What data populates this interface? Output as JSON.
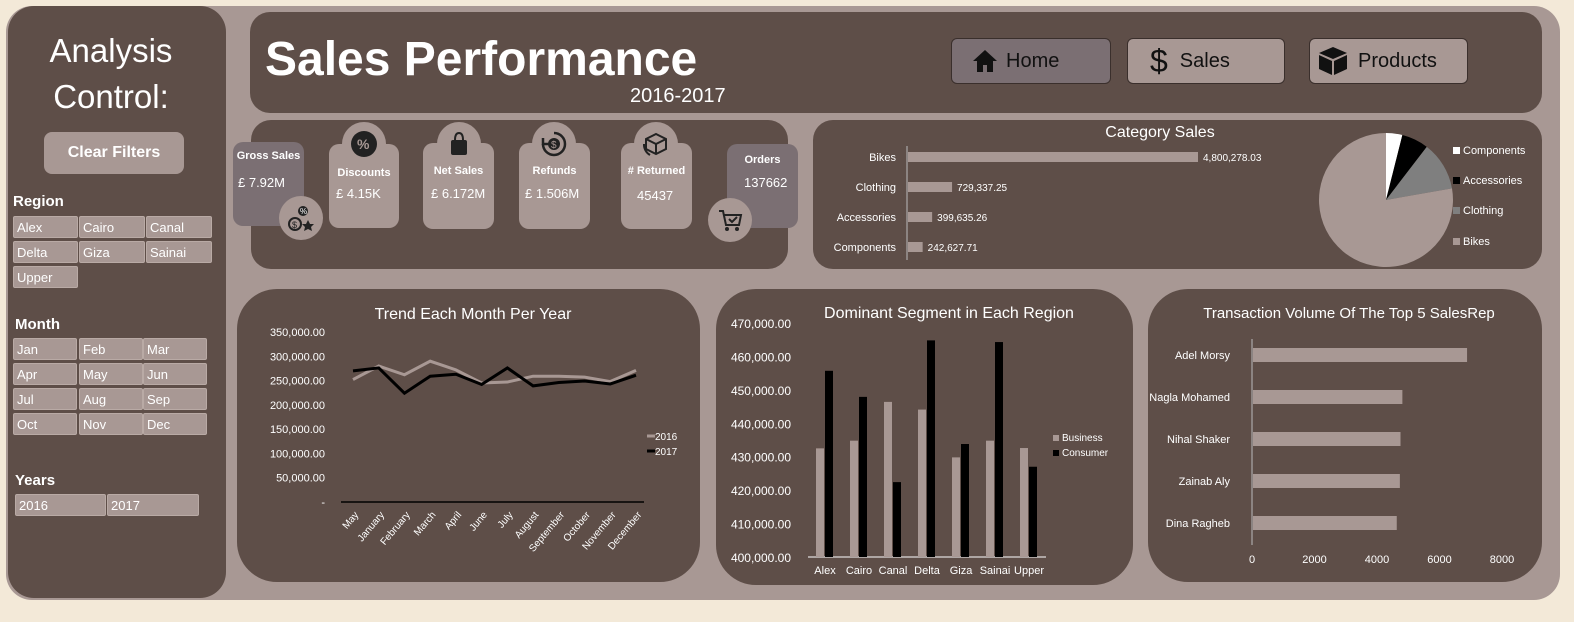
{
  "sidebar": {
    "title_line1": "Analysis",
    "title_line2": "Control:",
    "clear_filters": "Clear Filters",
    "region": {
      "label": "Region",
      "items": [
        "Alex",
        "Cairo",
        "Canal",
        "Delta",
        "Giza",
        "Sainai",
        "Upper"
      ]
    },
    "month": {
      "label": "Month",
      "items": [
        "Jan",
        "Feb",
        "Mar",
        "Apr",
        "May",
        "Jun",
        "Jul",
        "Aug",
        "Sep",
        "Oct",
        "Nov",
        "Dec"
      ]
    },
    "years": {
      "label": "Years",
      "items": [
        "2016",
        "2017"
      ]
    }
  },
  "header": {
    "title": "Sales Performance",
    "subtitle": "2016-2017",
    "nav": {
      "home": "Home",
      "sales": "Sales",
      "products": "Products"
    }
  },
  "kpis": {
    "gross_sales": {
      "label": "Gross Sales",
      "value": "£ 7.92M"
    },
    "discounts": {
      "label": "Discounts",
      "value": "£ 4.15K"
    },
    "net_sales": {
      "label": "Net Sales",
      "value": "£ 6.172M"
    },
    "refunds": {
      "label": "Refunds",
      "value": "£ 1.506M"
    },
    "returned": {
      "label": "# Returned",
      "value": "45437"
    },
    "orders": {
      "label": "Orders",
      "value": "137662"
    }
  },
  "colors": {
    "card": "#5e4e48",
    "frame": "#a89894",
    "accent_light": "#a89894",
    "black": "#000000",
    "white": "#ffffff",
    "grey": "#7f7f7f"
  },
  "chart_data": [
    {
      "id": "category",
      "type": "bar",
      "title": "Category Sales",
      "categories": [
        "Bikes",
        "Clothing",
        "Accessories",
        "Components"
      ],
      "values": [
        4800278.03,
        729337.25,
        399635.26,
        242627.71
      ],
      "labels": [
        "4,800,278.03",
        "729,337.25",
        "399,635.26",
        "242,627.71"
      ]
    },
    {
      "id": "category_pie",
      "type": "pie",
      "categories": [
        "Components",
        "Accessories",
        "Clothing",
        "Bikes"
      ],
      "values": [
        242627.71,
        399635.26,
        729337.25,
        4800278.03
      ],
      "colors": [
        "#ffffff",
        "#000000",
        "#7f7f7f",
        "#a89894"
      ]
    },
    {
      "id": "trend",
      "type": "line",
      "title": "Trend Each Month Per Year",
      "x": [
        "May",
        "January",
        "February",
        "March",
        "April",
        "June",
        "July",
        "August",
        "September",
        "October",
        "November",
        "December"
      ],
      "series": [
        {
          "name": "2016",
          "values": [
            252000,
            280000,
            262000,
            290000,
            272000,
            245000,
            247000,
            259000,
            259000,
            257000,
            248000,
            271000
          ],
          "color": "#a89894"
        },
        {
          "name": "2017",
          "values": [
            270000,
            276000,
            224000,
            259000,
            263000,
            242000,
            276000,
            239000,
            246000,
            249000,
            243000,
            261000
          ],
          "color": "#000000"
        }
      ],
      "ylim": [
        0,
        350000
      ],
      "yticks": [
        "-",
        "50,000.00",
        "100,000.00",
        "150,000.00",
        "200,000.00",
        "250,000.00",
        "300,000.00",
        "350,000.00"
      ]
    },
    {
      "id": "segment",
      "type": "bar",
      "title": "Dominant Segment in Each Region",
      "categories": [
        "Alex",
        "Cairo",
        "Canal",
        "Delta",
        "Giza",
        "Sainai",
        "Upper"
      ],
      "series": [
        {
          "name": "Business",
          "values": [
            432500,
            434800,
            446400,
            444100,
            429800,
            434800,
            432600
          ],
          "color": "#a89894"
        },
        {
          "name": "Consumer",
          "values": [
            455700,
            447900,
            422400,
            464800,
            433800,
            464300,
            427000
          ],
          "color": "#000000"
        }
      ],
      "ylim": [
        400000,
        470000
      ],
      "yticks": [
        "400,000.00",
        "410,000.00",
        "420,000.00",
        "430,000.00",
        "440,000.00",
        "450,000.00",
        "460,000.00",
        "470,000.00"
      ]
    },
    {
      "id": "salesrep",
      "type": "bar",
      "title": "Transaction Volume Of The Top 5 SalesRep",
      "categories": [
        "Adel Morsy",
        "Nagla Mohamed",
        "Nihal Shaker",
        "Zainab Aly",
        "Dina Ragheb"
      ],
      "values": [
        6850,
        4780,
        4720,
        4700,
        4600
      ],
      "xlim": [
        0,
        8000
      ],
      "xticks": [
        "0",
        "2000",
        "4000",
        "6000",
        "8000"
      ]
    }
  ]
}
